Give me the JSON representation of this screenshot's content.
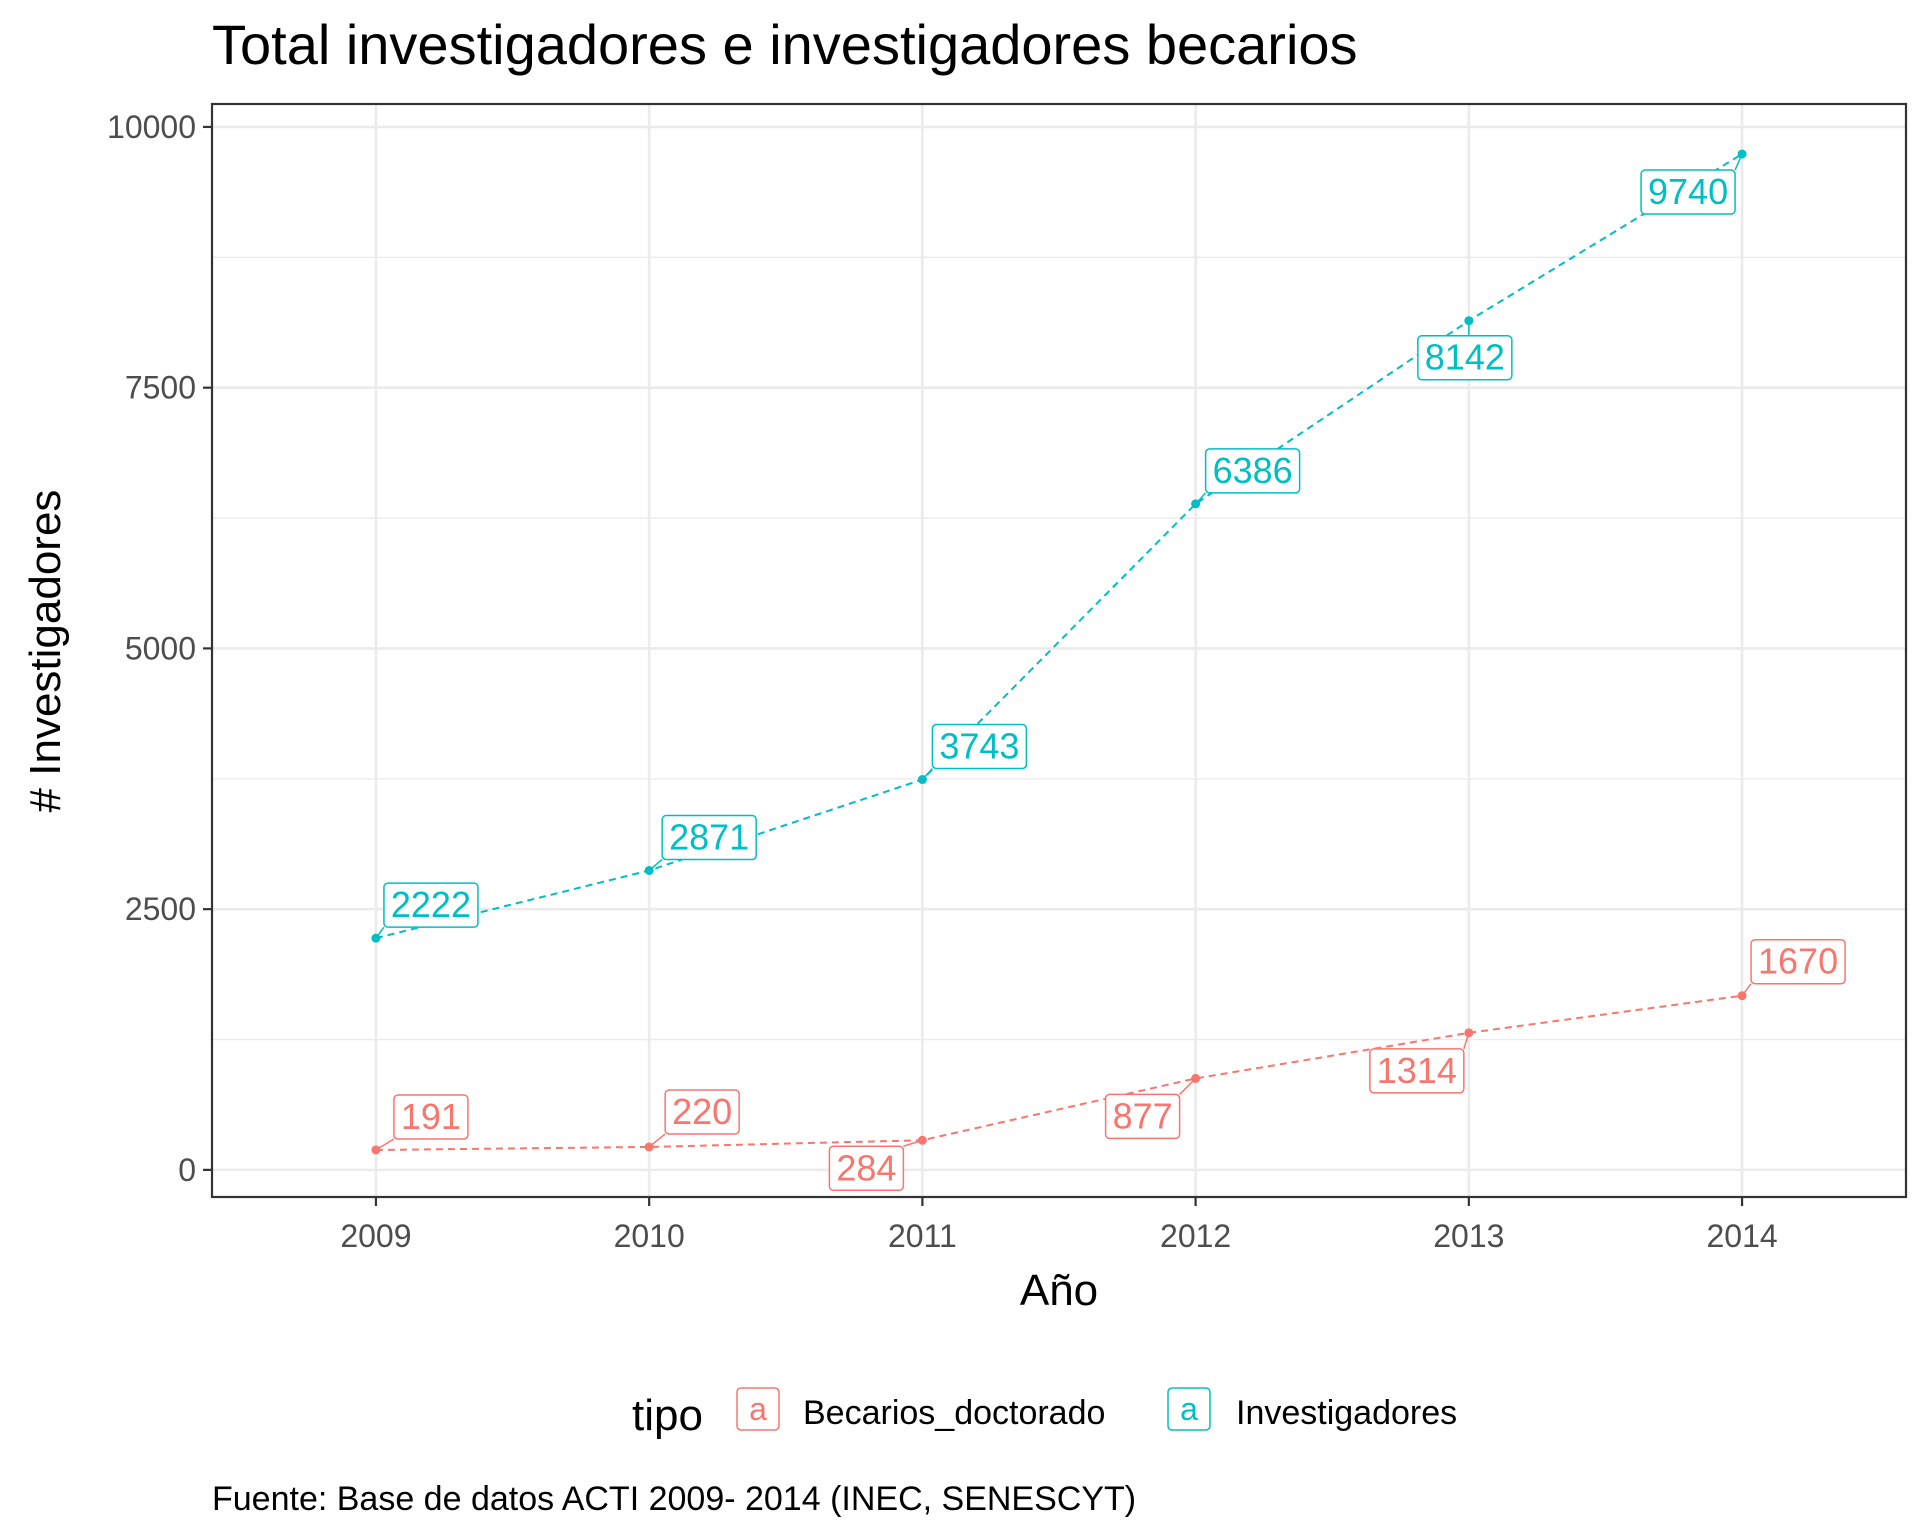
{
  "chart_data": {
    "type": "line",
    "title": "Total investigadores e investigadores becarios",
    "xlabel": "Año",
    "ylabel": "# Investigadores",
    "x": [
      2009,
      2010,
      2011,
      2012,
      2013,
      2014
    ],
    "xlim": [
      2008.4,
      2014.6
    ],
    "ylim": [
      -260,
      10220
    ],
    "y_ticks": [
      0,
      2500,
      5000,
      7500,
      10000
    ],
    "y_tick_labels": [
      "0",
      "2500",
      "5000",
      "7500",
      "10000"
    ],
    "x_tick_labels": [
      "2009",
      "2010",
      "2011",
      "2012",
      "2013",
      "2014"
    ],
    "grid": true,
    "line_style": "dashed",
    "legend": {
      "title": "tipo",
      "position": "bottom",
      "key_glyph": "a"
    },
    "caption": "Fuente: Base de datos ACTI 2009- 2014 (INEC, SENESCYT)",
    "series": [
      {
        "name": "Becarios_doctorado",
        "color": "#F8766D",
        "values": [
          191,
          220,
          284,
          877,
          1314,
          1670
        ],
        "labels": [
          "191",
          "220",
          "284",
          "877",
          "1314",
          "1670"
        ]
      },
      {
        "name": "Investigadores",
        "color": "#00BFC4",
        "values": [
          2222,
          2871,
          3743,
          6386,
          8142,
          9740
        ],
        "labels": [
          "2222",
          "2871",
          "3743",
          "6386",
          "8142",
          "9740"
        ]
      }
    ]
  }
}
